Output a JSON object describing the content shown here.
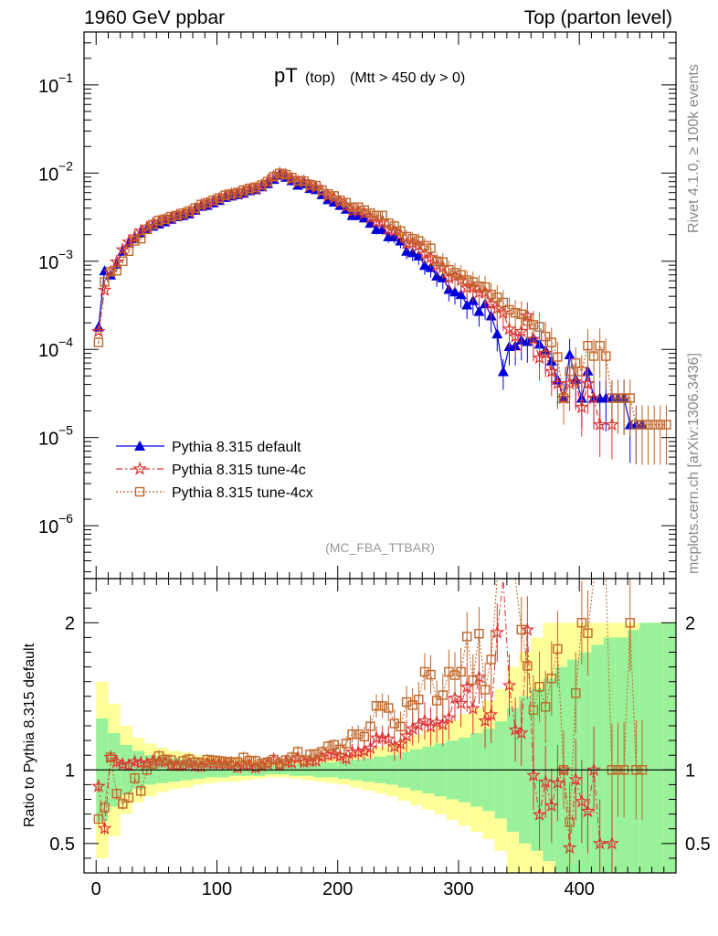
{
  "header": {
    "left": "1960 GeV ppbar",
    "right": "Top (parton level)"
  },
  "side_labels": {
    "rivet": "Rivet 4.1.0, ≥ 100k events",
    "mcplots": "mcplots.cern.ch [arXiv:1306.3436]"
  },
  "chart_data": {
    "type": "scatter",
    "title_main": "pT",
    "title_sub": "(top)",
    "title_cut": "(Mtt > 450 dy > 0)",
    "analysis": "(MC_FBA_TTBAR)",
    "ylabel_ratio": "Ratio to Pythia 8.315 default",
    "xlim": [
      -10,
      480
    ],
    "ylim_main_log10": [
      -6.6,
      -0.4
    ],
    "ylim_ratio": [
      0.3,
      2.3
    ],
    "x_ticks": [
      "0",
      "100",
      "200",
      "300",
      "400"
    ],
    "x_tick_values": [
      0,
      100,
      200,
      300,
      400
    ],
    "y_ticks_main": [
      "10",
      "10",
      "10",
      "10",
      "10",
      "10"
    ],
    "y_tick_exponents": [
      "−1",
      "−2",
      "−3",
      "−4",
      "−5",
      "−6"
    ],
    "y_tick_log10": [
      -1,
      -2,
      -3,
      -4,
      -5,
      -6
    ],
    "y_ticks_ratio": [
      "0.5",
      "1",
      "2"
    ],
    "y_tick_ratio_values": [
      0.5,
      1,
      2
    ],
    "legend": [
      {
        "name": "Pythia 8.315 default",
        "color": "#0000dd",
        "marker": "triangle"
      },
      {
        "name": "Pythia 8.315 tune-4c",
        "color": "#dd3333",
        "marker": "star"
      },
      {
        "name": "Pythia 8.315 tune-4cx",
        "color": "#c0662a",
        "marker": "square"
      }
    ],
    "x": [
      2,
      7,
      12,
      17,
      22,
      27,
      32,
      37,
      42,
      47,
      52,
      57,
      62,
      67,
      72,
      77,
      82,
      87,
      92,
      97,
      102,
      107,
      112,
      117,
      122,
      127,
      132,
      137,
      142,
      147,
      152,
      157,
      162,
      167,
      172,
      177,
      182,
      187,
      192,
      197,
      202,
      207,
      212,
      217,
      222,
      227,
      232,
      237,
      242,
      247,
      252,
      257,
      262,
      267,
      272,
      277,
      282,
      287,
      292,
      297,
      302,
      307,
      312,
      317,
      322,
      327,
      332,
      337,
      342,
      347,
      352,
      357,
      362,
      367,
      372,
      377,
      382,
      387,
      392,
      397,
      402,
      407,
      412,
      417,
      422,
      427,
      432,
      437,
      442,
      447,
      452,
      457,
      462,
      467,
      472
    ],
    "series": [
      {
        "name": "Pythia 8.315 default",
        "values": [
          0.00018,
          0.00078,
          0.0007,
          0.00093,
          0.0013,
          0.0016,
          0.0018,
          0.0021,
          0.0023,
          0.0025,
          0.00265,
          0.0028,
          0.003,
          0.0032,
          0.0033,
          0.00345,
          0.0038,
          0.0042,
          0.0043,
          0.0046,
          0.0049,
          0.0053,
          0.0055,
          0.0057,
          0.0059,
          0.0063,
          0.0065,
          0.007,
          0.0076,
          0.0085,
          0.0095,
          0.009,
          0.0082,
          0.0073,
          0.0076,
          0.0067,
          0.0065,
          0.0057,
          0.005,
          0.0047,
          0.0043,
          0.0039,
          0.0033,
          0.0033,
          0.0031,
          0.0027,
          0.0023,
          0.0023,
          0.0019,
          0.0019,
          0.0017,
          0.0013,
          0.00125,
          0.00115,
          0.0009,
          0.00085,
          0.00068,
          0.00065,
          0.00048,
          0.00045,
          0.00042,
          0.00032,
          0.00036,
          0.00027,
          0.00033,
          0.00024,
          0.00015,
          5.6e-05,
          0.000108,
          0.00011,
          0.000128,
          0.000123,
          0.000135,
          0.000115,
          9.8e-05,
          7.4e-05,
          4.5e-05,
          2.8e-05,
          8.7e-05,
          4.6e-05,
          2.8e-05,
          5.7e-05,
          2.8e-05,
          2.8e-05,
          2.8e-05,
          2.8e-05,
          2.8e-05,
          2.8e-05,
          1.4e-05,
          1.4e-05,
          1.4e-05,
          null,
          null,
          null,
          null
        ]
      },
      {
        "name": "Pythia 8.315 tune-4c",
        "values": [
          0.00016,
          0.00047,
          0.00076,
          0.00098,
          0.00135,
          0.00165,
          0.0019,
          0.0022,
          0.0024,
          0.00265,
          0.0028,
          0.00295,
          0.0031,
          0.0033,
          0.0034,
          0.0036,
          0.0039,
          0.0043,
          0.0045,
          0.0048,
          0.0051,
          0.0055,
          0.0057,
          0.0058,
          0.0061,
          0.0065,
          0.0066,
          0.0072,
          0.0079,
          0.0091,
          0.0098,
          0.0095,
          0.0086,
          0.0079,
          0.008,
          0.0071,
          0.0069,
          0.0062,
          0.0055,
          0.0052,
          0.0047,
          0.0042,
          0.0037,
          0.0037,
          0.0035,
          0.0031,
          0.0028,
          0.0028,
          0.0023,
          0.0022,
          0.002,
          0.0016,
          0.0016,
          0.0015,
          0.0012,
          0.0011,
          0.0009,
          0.00085,
          0.00065,
          0.00067,
          0.00061,
          0.0005,
          0.00051,
          0.00044,
          0.00044,
          0.00033,
          0.00029,
          0.00026,
          0.00017,
          0.00014,
          0.00016,
          0.00024,
          0.00013,
          8e-05,
          9e-05,
          5.6e-05,
          4.1e-05,
          2.8e-05,
          4.1e-05,
          4.3e-05,
          2.2e-05,
          4.1e-05,
          2.8e-05,
          1.4e-05,
          null,
          1.4e-05,
          null,
          null,
          null,
          null,
          null,
          null,
          null,
          null,
          null
        ]
      },
      {
        "name": "Pythia 8.315 tune-4cx",
        "values": [
          0.00012,
          0.00058,
          0.00076,
          0.00078,
          0.001,
          0.0013,
          0.0017,
          0.0018,
          0.0023,
          0.0026,
          0.0029,
          0.003,
          0.0032,
          0.0033,
          0.0035,
          0.0037,
          0.004,
          0.0044,
          0.0046,
          0.0049,
          0.0052,
          0.0056,
          0.0058,
          0.006,
          0.0064,
          0.0067,
          0.0069,
          0.0073,
          0.008,
          0.0091,
          0.0099,
          0.0096,
          0.0089,
          0.0082,
          0.0081,
          0.0074,
          0.0072,
          0.0064,
          0.0058,
          0.0055,
          0.0049,
          0.0046,
          0.0041,
          0.0041,
          0.0038,
          0.0035,
          0.0033,
          0.0033,
          0.0027,
          0.0025,
          0.0022,
          0.0019,
          0.0018,
          0.0017,
          0.0015,
          0.0014,
          0.001,
          0.00098,
          0.0008,
          0.00074,
          0.0007,
          0.00061,
          0.00058,
          0.00052,
          0.00051,
          0.00042,
          0.00039,
          0.00034,
          0.00028,
          0.00026,
          0.00025,
          0.00021,
          0.00019,
          0.00018,
          0.00014,
          0.00012,
          8.2e-05,
          2.8e-05,
          5.6e-05,
          7e-05,
          5.6e-05,
          0.00011,
          8.4e-05,
          0.00011,
          8.4e-05,
          2.8e-05,
          2.8e-05,
          2.8e-05,
          2.8e-05,
          1.4e-05,
          1.4e-05,
          1.4e-05,
          1.4e-05,
          1.4e-05,
          1.4e-05
        ]
      }
    ],
    "ratio_band_x": [
      0,
      10,
      20,
      30,
      40,
      50,
      60,
      70,
      80,
      90,
      100,
      110,
      120,
      130,
      140,
      150,
      160,
      170,
      180,
      190,
      200,
      210,
      220,
      230,
      240,
      250,
      260,
      270,
      280,
      290,
      300,
      310,
      320,
      330,
      340,
      350,
      360,
      370,
      380,
      390,
      400,
      410,
      420,
      430,
      440,
      450,
      460,
      470
    ],
    "ratio_band_yellow": [
      0.6,
      0.45,
      0.3,
      0.22,
      0.18,
      0.15,
      0.13,
      0.12,
      0.1,
      0.09,
      0.08,
      0.08,
      0.07,
      0.06,
      0.05,
      0.05,
      0.06,
      0.07,
      0.08,
      0.09,
      0.1,
      0.12,
      0.14,
      0.16,
      0.18,
      0.21,
      0.24,
      0.27,
      0.3,
      0.34,
      0.38,
      0.42,
      0.47,
      0.55,
      0.7,
      0.8,
      0.9,
      1.0,
      1.0,
      1.0,
      1.0,
      1.0,
      1.0,
      1.0,
      1.0,
      1.0,
      1.0,
      1.0
    ],
    "ratio_band_green": [
      0.35,
      0.25,
      0.17,
      0.13,
      0.1,
      0.09,
      0.08,
      0.07,
      0.06,
      0.05,
      0.05,
      0.04,
      0.04,
      0.04,
      0.03,
      0.03,
      0.04,
      0.04,
      0.05,
      0.05,
      0.06,
      0.07,
      0.08,
      0.09,
      0.1,
      0.12,
      0.14,
      0.16,
      0.18,
      0.2,
      0.22,
      0.25,
      0.28,
      0.33,
      0.42,
      0.5,
      0.55,
      0.62,
      0.7,
      0.75,
      0.8,
      0.85,
      0.9,
      0.9,
      0.95,
      1.0,
      1.0,
      1.0
    ]
  }
}
